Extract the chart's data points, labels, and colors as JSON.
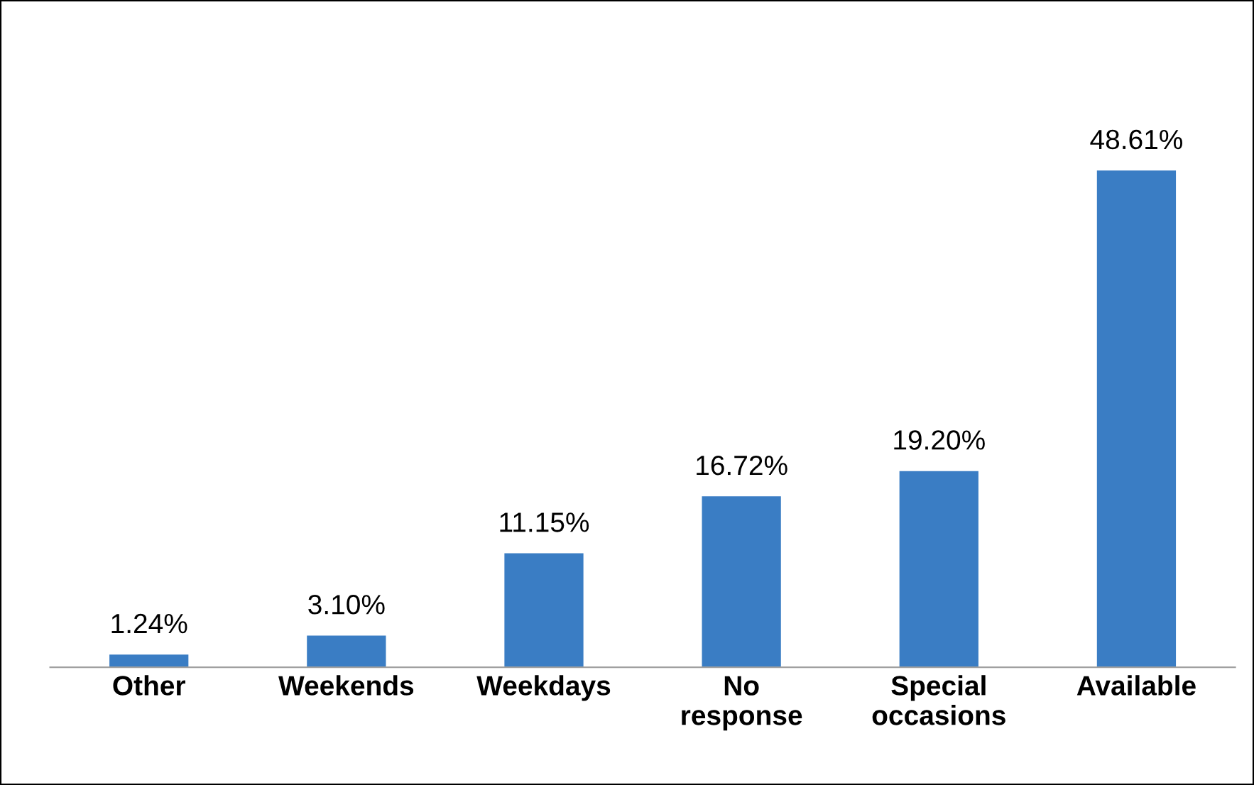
{
  "chart_data": {
    "type": "bar",
    "categories": [
      "Other",
      "Weekends",
      "Weekdays",
      "No\nresponse",
      "Special\noccasions",
      "Available"
    ],
    "values": [
      1.24,
      3.1,
      11.15,
      16.72,
      19.2,
      48.61
    ],
    "value_labels": [
      "1.24%",
      "3.10%",
      "11.15%",
      "16.72%",
      "19.20%",
      "48.61%"
    ],
    "color": "#3a7dc4",
    "grid": false,
    "legend": false,
    "tick_labels": "x"
  }
}
